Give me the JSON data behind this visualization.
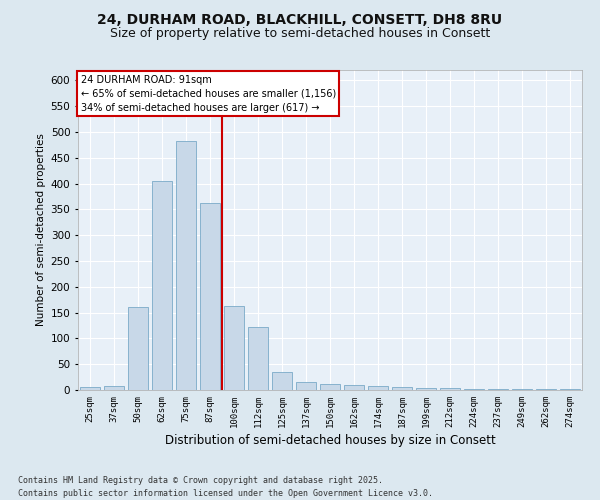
{
  "title": "24, DURHAM ROAD, BLACKHILL, CONSETT, DH8 8RU",
  "subtitle": "Size of property relative to semi-detached houses in Consett",
  "xlabel": "Distribution of semi-detached houses by size in Consett",
  "ylabel": "Number of semi-detached properties",
  "bar_color": "#c8d8e8",
  "bar_edge_color": "#7aaac8",
  "categories": [
    "25sqm",
    "37sqm",
    "50sqm",
    "62sqm",
    "75sqm",
    "87sqm",
    "100sqm",
    "112sqm",
    "125sqm",
    "137sqm",
    "150sqm",
    "162sqm",
    "174sqm",
    "187sqm",
    "199sqm",
    "212sqm",
    "224sqm",
    "237sqm",
    "249sqm",
    "262sqm",
    "274sqm"
  ],
  "values": [
    5,
    8,
    160,
    405,
    482,
    363,
    163,
    122,
    35,
    15,
    12,
    10,
    8,
    5,
    4,
    3,
    2,
    1,
    1,
    1,
    2
  ],
  "ylim": [
    0,
    620
  ],
  "yticks": [
    0,
    50,
    100,
    150,
    200,
    250,
    300,
    350,
    400,
    450,
    500,
    550,
    600
  ],
  "property_line_color": "#cc0000",
  "annotation_title": "24 DURHAM ROAD: 91sqm",
  "annotation_line1": "← 65% of semi-detached houses are smaller (1,156)",
  "annotation_line2": "34% of semi-detached houses are larger (617) →",
  "annotation_box_color": "#cc0000",
  "footer_line1": "Contains HM Land Registry data © Crown copyright and database right 2025.",
  "footer_line2": "Contains public sector information licensed under the Open Government Licence v3.0.",
  "background_color": "#dce8f0",
  "plot_bg_color": "#e8f0f8",
  "grid_color": "#ffffff",
  "title_fontsize": 10,
  "subtitle_fontsize": 9
}
